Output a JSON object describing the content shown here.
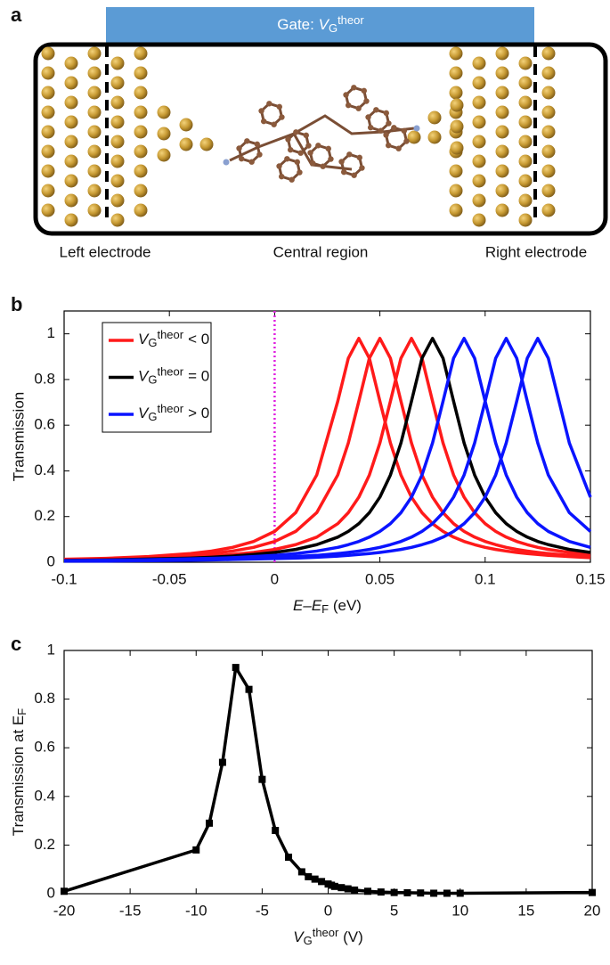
{
  "diagram": {
    "panel_label": "a",
    "gate": {
      "prefix": "Gate: ",
      "symbol": "V",
      "sub": "G",
      "sup": "theor"
    },
    "regions": [
      "Left electrode",
      "Central region",
      "Right electrode"
    ]
  },
  "chart_data": [
    {
      "type": "line",
      "panel_label": "b",
      "xlabel": {
        "main": "E–E",
        "sub": "F",
        "unit": " (eV)"
      },
      "ylabel": "Transmission",
      "x": [
        -0.1,
        -0.08,
        -0.06,
        -0.04,
        -0.03,
        -0.02,
        -0.01,
        0,
        0.01,
        0.02,
        0.03,
        0.035,
        0.04,
        0.045,
        0.05,
        0.055,
        0.06,
        0.065,
        0.07,
        0.075,
        0.08,
        0.085,
        0.09,
        0.095,
        0.1,
        0.105,
        0.11,
        0.115,
        0.12,
        0.125,
        0.13,
        0.14,
        0.15
      ],
      "series": [
        {
          "name": {
            "symbol": "V",
            "sub": "G",
            "sup": "theor",
            "relation": "< 0"
          },
          "color": "#ff1a1a",
          "curves": [
            [
              0.013,
              0.017,
              0.025,
              0.038,
              0.049,
              0.065,
              0.091,
              0.135,
              0.217,
              0.382,
              0.705,
              0.893,
              0.98,
              0.893,
              0.705,
              0.522,
              0.382,
              0.285,
              0.217,
              0.169,
              0.135,
              0.11,
              0.091,
              0.077,
              0.065,
              0.056,
              0.049,
              0.043,
              0.038,
              0.034,
              0.03,
              0.025,
              0.02
            ],
            [
              0.011,
              0.015,
              0.02,
              0.03,
              0.038,
              0.049,
              0.065,
              0.091,
              0.135,
              0.217,
              0.382,
              0.522,
              0.705,
              0.893,
              0.98,
              0.893,
              0.705,
              0.522,
              0.382,
              0.285,
              0.217,
              0.169,
              0.135,
              0.11,
              0.091,
              0.077,
              0.065,
              0.056,
              0.049,
              0.043,
              0.038,
              0.03,
              0.025
            ],
            [
              0.009,
              0.012,
              0.016,
              0.022,
              0.027,
              0.034,
              0.043,
              0.056,
              0.077,
              0.11,
              0.169,
              0.217,
              0.285,
              0.382,
              0.522,
              0.705,
              0.893,
              0.98,
              0.893,
              0.705,
              0.522,
              0.382,
              0.285,
              0.217,
              0.169,
              0.135,
              0.11,
              0.091,
              0.077,
              0.065,
              0.056,
              0.043,
              0.034
            ]
          ]
        },
        {
          "name": {
            "symbol": "V",
            "sub": "G",
            "sup": "theor",
            "relation": "= 0"
          },
          "color": "#000000",
          "curves": [
            [
              0.008,
              0.01,
              0.014,
              0.018,
              0.022,
              0.027,
              0.034,
              0.043,
              0.056,
              0.077,
              0.11,
              0.135,
              0.169,
              0.217,
              0.285,
              0.382,
              0.522,
              0.705,
              0.893,
              0.98,
              0.893,
              0.705,
              0.522,
              0.382,
              0.285,
              0.217,
              0.169,
              0.135,
              0.11,
              0.091,
              0.077,
              0.056,
              0.043
            ]
          ]
        },
        {
          "name": {
            "symbol": "V",
            "sub": "G",
            "sup": "theor",
            "relation": "> 0"
          },
          "color": "#0a14ff",
          "curves": [
            [
              0.007,
              0.009,
              0.011,
              0.015,
              0.017,
              0.02,
              0.025,
              0.03,
              0.038,
              0.049,
              0.065,
              0.077,
              0.091,
              0.11,
              0.135,
              0.169,
              0.217,
              0.285,
              0.382,
              0.522,
              0.705,
              0.893,
              0.98,
              0.893,
              0.705,
              0.522,
              0.382,
              0.285,
              0.217,
              0.169,
              0.135,
              0.091,
              0.065
            ],
            [
              0.005,
              0.007,
              0.009,
              0.011,
              0.013,
              0.015,
              0.017,
              0.02,
              0.025,
              0.03,
              0.038,
              0.043,
              0.049,
              0.056,
              0.065,
              0.077,
              0.091,
              0.11,
              0.135,
              0.169,
              0.217,
              0.285,
              0.382,
              0.522,
              0.705,
              0.893,
              0.98,
              0.893,
              0.705,
              0.522,
              0.382,
              0.217,
              0.135
            ],
            [
              0.005,
              0.005,
              0.007,
              0.009,
              0.01,
              0.012,
              0.014,
              0.016,
              0.018,
              0.022,
              0.027,
              0.03,
              0.034,
              0.038,
              0.043,
              0.049,
              0.056,
              0.065,
              0.077,
              0.091,
              0.11,
              0.135,
              0.169,
              0.217,
              0.285,
              0.382,
              0.522,
              0.705,
              0.893,
              0.98,
              0.893,
              0.522,
              0.285
            ]
          ]
        }
      ],
      "reference_line": {
        "x": 0,
        "color": "#e020e0"
      },
      "xlim": [
        -0.1,
        0.15
      ],
      "xticks": [
        -0.1,
        -0.05,
        0,
        0.05,
        0.1,
        0.15
      ],
      "ylim": [
        0,
        1.1
      ],
      "yticks": [
        0,
        0.2,
        0.4,
        0.6,
        0.8,
        1
      ],
      "legend": "upper left"
    },
    {
      "type": "line",
      "panel_label": "c",
      "marker": "square",
      "color": "#000000",
      "xlabel": {
        "main": "V",
        "sub": "G",
        "sup": "theor",
        "unit": " (V)"
      },
      "ylabel": {
        "main": "Transmission at E",
        "sub": "F"
      },
      "x": [
        -20,
        -10,
        -9,
        -8,
        -7,
        -6,
        -5,
        -4,
        -3,
        -2,
        -1.5,
        -1,
        -0.5,
        0,
        0.25,
        0.5,
        1,
        1.5,
        2,
        3,
        4,
        5,
        6,
        7,
        8,
        9,
        10,
        20
      ],
      "values": [
        0.01,
        0.18,
        0.29,
        0.54,
        0.93,
        0.84,
        0.47,
        0.26,
        0.15,
        0.09,
        0.07,
        0.06,
        0.05,
        0.04,
        0.035,
        0.03,
        0.025,
        0.02,
        0.015,
        0.01,
        0.007,
        0.005,
        0.004,
        0.003,
        0.002,
        0.002,
        0.002,
        0.005
      ],
      "xlim": [
        -20,
        20
      ],
      "xticks": [
        -20,
        -15,
        -10,
        -5,
        0,
        5,
        10,
        15,
        20
      ],
      "ylim": [
        0,
        1
      ],
      "yticks": [
        0,
        0.2,
        0.4,
        0.6,
        0.8,
        1
      ]
    }
  ]
}
